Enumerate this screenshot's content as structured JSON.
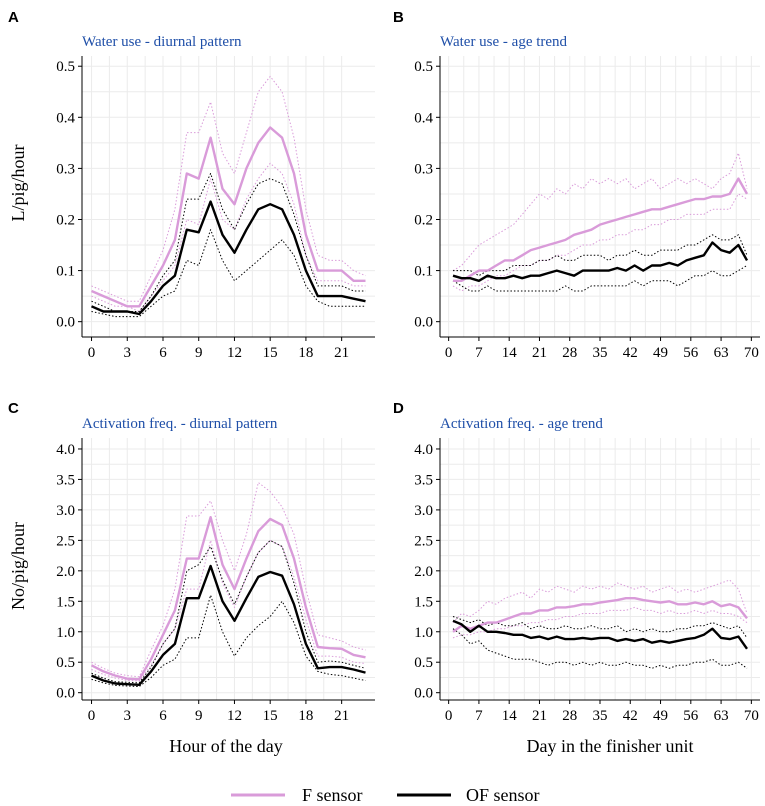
{
  "colors": {
    "f_sensor": "#d99bd9",
    "of_sensor": "#000000",
    "title": "#1f4fa8",
    "grid": "#ebebeb"
  },
  "legend": {
    "f_label": "F sensor",
    "of_label": "OF sensor"
  },
  "chart_data": [
    {
      "letter": "A",
      "type": "line",
      "title": "Water use - diurnal pattern",
      "xlabel": "",
      "ylabel": "L/pig/hour",
      "xlim": [
        -0.8,
        23.8
      ],
      "ylim": [
        -0.03,
        0.52
      ],
      "xticks": [
        0,
        3,
        6,
        9,
        12,
        15,
        18,
        21
      ],
      "yticks": [
        0.0,
        0.1,
        0.2,
        0.3,
        0.4,
        0.5
      ],
      "ytick_labels": [
        "0.0",
        "0.1",
        "0.2",
        "0.3",
        "0.4",
        "0.5"
      ],
      "x": [
        0,
        1,
        2,
        3,
        4,
        5,
        6,
        7,
        8,
        9,
        10,
        11,
        12,
        13,
        14,
        15,
        16,
        17,
        18,
        19,
        20,
        21,
        22,
        23
      ],
      "series": [
        {
          "name": "F sensor",
          "role": "mean",
          "values": [
            0.06,
            0.05,
            0.04,
            0.03,
            0.03,
            0.07,
            0.11,
            0.16,
            0.29,
            0.28,
            0.36,
            0.26,
            0.23,
            0.3,
            0.35,
            0.38,
            0.36,
            0.29,
            0.17,
            0.1,
            0.1,
            0.1,
            0.08,
            0.08
          ]
        },
        {
          "name": "F sensor",
          "role": "upper",
          "values": [
            0.07,
            0.06,
            0.05,
            0.04,
            0.04,
            0.09,
            0.14,
            0.22,
            0.37,
            0.37,
            0.43,
            0.33,
            0.29,
            0.37,
            0.45,
            0.48,
            0.45,
            0.36,
            0.22,
            0.13,
            0.12,
            0.12,
            0.1,
            0.09
          ]
        },
        {
          "name": "F sensor",
          "role": "lower",
          "values": [
            0.05,
            0.04,
            0.03,
            0.03,
            0.02,
            0.05,
            0.08,
            0.11,
            0.2,
            0.19,
            0.28,
            0.2,
            0.18,
            0.24,
            0.28,
            0.31,
            0.29,
            0.23,
            0.13,
            0.08,
            0.08,
            0.08,
            0.07,
            0.07
          ]
        },
        {
          "name": "OF sensor",
          "role": "mean",
          "values": [
            0.03,
            0.02,
            0.02,
            0.02,
            0.015,
            0.04,
            0.07,
            0.09,
            0.18,
            0.175,
            0.235,
            0.17,
            0.135,
            0.18,
            0.22,
            0.23,
            0.22,
            0.17,
            0.1,
            0.05,
            0.05,
            0.05,
            0.045,
            0.04
          ]
        },
        {
          "name": "OF sensor",
          "role": "upper",
          "values": [
            0.04,
            0.03,
            0.02,
            0.02,
            0.02,
            0.05,
            0.09,
            0.12,
            0.24,
            0.24,
            0.29,
            0.22,
            0.18,
            0.23,
            0.27,
            0.28,
            0.27,
            0.21,
            0.13,
            0.07,
            0.07,
            0.07,
            0.06,
            0.06
          ]
        },
        {
          "name": "OF sensor",
          "role": "lower",
          "values": [
            0.02,
            0.015,
            0.01,
            0.01,
            0.01,
            0.03,
            0.05,
            0.06,
            0.12,
            0.11,
            0.18,
            0.12,
            0.08,
            0.1,
            0.12,
            0.14,
            0.16,
            0.13,
            0.07,
            0.04,
            0.03,
            0.03,
            0.03,
            0.03
          ]
        }
      ]
    },
    {
      "letter": "B",
      "type": "line",
      "title": "Water use - age trend",
      "xlabel": "",
      "ylabel": "",
      "xlim": [
        -2,
        72
      ],
      "ylim": [
        -0.03,
        0.52
      ],
      "xticks": [
        0,
        7,
        14,
        21,
        28,
        35,
        42,
        49,
        56,
        63,
        70
      ],
      "yticks": [
        0.0,
        0.1,
        0.2,
        0.3,
        0.4,
        0.5
      ],
      "ytick_labels": [
        "0.0",
        "0.1",
        "0.2",
        "0.3",
        "0.4",
        "0.5"
      ],
      "x": [
        1,
        3,
        5,
        7,
        9,
        11,
        13,
        15,
        17,
        19,
        21,
        23,
        25,
        27,
        29,
        31,
        33,
        35,
        37,
        39,
        41,
        43,
        45,
        47,
        49,
        51,
        53,
        55,
        57,
        59,
        61,
        63,
        65,
        67,
        69
      ],
      "series": [
        {
          "name": "F sensor",
          "role": "mean",
          "values": [
            0.08,
            0.08,
            0.09,
            0.1,
            0.1,
            0.11,
            0.12,
            0.12,
            0.13,
            0.14,
            0.145,
            0.15,
            0.155,
            0.16,
            0.17,
            0.175,
            0.18,
            0.19,
            0.195,
            0.2,
            0.205,
            0.21,
            0.215,
            0.22,
            0.22,
            0.225,
            0.23,
            0.235,
            0.24,
            0.24,
            0.245,
            0.245,
            0.25,
            0.28,
            0.25
          ]
        },
        {
          "name": "F sensor",
          "role": "upper",
          "values": [
            0.1,
            0.11,
            0.13,
            0.15,
            0.16,
            0.17,
            0.18,
            0.19,
            0.21,
            0.23,
            0.25,
            0.24,
            0.26,
            0.25,
            0.27,
            0.26,
            0.28,
            0.27,
            0.28,
            0.27,
            0.28,
            0.26,
            0.27,
            0.28,
            0.26,
            0.27,
            0.28,
            0.27,
            0.28,
            0.27,
            0.26,
            0.28,
            0.29,
            0.33,
            0.26
          ]
        },
        {
          "name": "F sensor",
          "role": "lower",
          "values": [
            0.07,
            0.06,
            0.07,
            0.07,
            0.08,
            0.09,
            0.09,
            0.1,
            0.11,
            0.11,
            0.12,
            0.12,
            0.13,
            0.13,
            0.14,
            0.15,
            0.15,
            0.16,
            0.16,
            0.17,
            0.17,
            0.18,
            0.18,
            0.19,
            0.19,
            0.2,
            0.2,
            0.21,
            0.21,
            0.21,
            0.22,
            0.22,
            0.22,
            0.25,
            0.24
          ]
        },
        {
          "name": "OF sensor",
          "role": "mean",
          "values": [
            0.09,
            0.085,
            0.085,
            0.08,
            0.09,
            0.085,
            0.085,
            0.09,
            0.085,
            0.09,
            0.09,
            0.095,
            0.1,
            0.095,
            0.09,
            0.1,
            0.1,
            0.1,
            0.1,
            0.105,
            0.1,
            0.11,
            0.1,
            0.11,
            0.11,
            0.115,
            0.11,
            0.12,
            0.125,
            0.13,
            0.155,
            0.14,
            0.135,
            0.15,
            0.12
          ]
        },
        {
          "name": "OF sensor",
          "role": "upper",
          "values": [
            0.1,
            0.1,
            0.1,
            0.09,
            0.1,
            0.1,
            0.1,
            0.11,
            0.11,
            0.11,
            0.12,
            0.12,
            0.13,
            0.12,
            0.12,
            0.13,
            0.13,
            0.13,
            0.12,
            0.13,
            0.13,
            0.14,
            0.13,
            0.13,
            0.14,
            0.14,
            0.14,
            0.15,
            0.15,
            0.16,
            0.17,
            0.16,
            0.16,
            0.17,
            0.13
          ]
        },
        {
          "name": "OF sensor",
          "role": "lower",
          "values": [
            0.08,
            0.07,
            0.06,
            0.06,
            0.07,
            0.06,
            0.06,
            0.06,
            0.06,
            0.06,
            0.06,
            0.06,
            0.06,
            0.07,
            0.06,
            0.06,
            0.07,
            0.07,
            0.07,
            0.07,
            0.07,
            0.08,
            0.07,
            0.08,
            0.08,
            0.08,
            0.07,
            0.08,
            0.09,
            0.09,
            0.1,
            0.09,
            0.09,
            0.1,
            0.11
          ]
        }
      ]
    },
    {
      "letter": "C",
      "type": "line",
      "title": "Activation freq. - diurnal pattern",
      "xlabel": "Hour of the day",
      "ylabel": "No/pig/hour",
      "xlim": [
        -0.8,
        23.8
      ],
      "ylim": [
        -0.12,
        4.18
      ],
      "xticks": [
        0,
        3,
        6,
        9,
        12,
        15,
        18,
        21
      ],
      "yticks": [
        0.0,
        0.5,
        1.0,
        1.5,
        2.0,
        2.5,
        3.0,
        3.5,
        4.0
      ],
      "ytick_labels": [
        "0.0",
        "0.5",
        "1.0",
        "1.5",
        "2.0",
        "2.5",
        "3.0",
        "3.5",
        "4.0"
      ],
      "x": [
        0,
        1,
        2,
        3,
        4,
        5,
        6,
        7,
        8,
        9,
        10,
        11,
        12,
        13,
        14,
        15,
        16,
        17,
        18,
        19,
        20,
        21,
        22,
        23
      ],
      "series": [
        {
          "name": "F sensor",
          "role": "mean",
          "values": [
            0.45,
            0.35,
            0.28,
            0.23,
            0.22,
            0.55,
            0.95,
            1.35,
            2.2,
            2.2,
            2.88,
            2.1,
            1.7,
            2.2,
            2.65,
            2.85,
            2.75,
            2.2,
            1.4,
            0.75,
            0.73,
            0.72,
            0.62,
            0.58
          ]
        },
        {
          "name": "F sensor",
          "role": "upper",
          "values": [
            0.5,
            0.4,
            0.32,
            0.28,
            0.26,
            0.7,
            1.1,
            1.7,
            2.9,
            2.9,
            3.15,
            2.5,
            2.0,
            2.6,
            3.45,
            3.3,
            3.05,
            2.6,
            1.7,
            0.95,
            0.9,
            0.85,
            0.75,
            0.7
          ]
        },
        {
          "name": "F sensor",
          "role": "lower",
          "values": [
            0.38,
            0.3,
            0.24,
            0.2,
            0.19,
            0.45,
            0.8,
            1.05,
            1.7,
            1.7,
            2.5,
            1.8,
            1.4,
            1.9,
            2.3,
            2.5,
            2.4,
            1.9,
            1.2,
            0.6,
            0.6,
            0.58,
            0.5,
            0.48
          ]
        },
        {
          "name": "OF sensor",
          "role": "mean",
          "values": [
            0.28,
            0.2,
            0.15,
            0.14,
            0.13,
            0.35,
            0.62,
            0.8,
            1.55,
            1.55,
            2.08,
            1.5,
            1.18,
            1.55,
            1.9,
            1.98,
            1.92,
            1.45,
            0.8,
            0.4,
            0.42,
            0.42,
            0.38,
            0.33
          ]
        },
        {
          "name": "OF sensor",
          "role": "upper",
          "values": [
            0.32,
            0.24,
            0.18,
            0.17,
            0.16,
            0.42,
            0.8,
            1.05,
            2.0,
            2.1,
            2.4,
            1.85,
            1.45,
            1.9,
            2.3,
            2.5,
            2.4,
            1.8,
            1.0,
            0.5,
            0.52,
            0.5,
            0.45,
            0.4
          ]
        },
        {
          "name": "OF sensor",
          "role": "lower",
          "values": [
            0.22,
            0.16,
            0.12,
            0.11,
            0.1,
            0.25,
            0.45,
            0.55,
            0.9,
            0.9,
            1.6,
            1.0,
            0.6,
            0.9,
            1.1,
            1.25,
            1.5,
            1.15,
            0.6,
            0.35,
            0.3,
            0.28,
            0.24,
            0.2
          ]
        }
      ]
    },
    {
      "letter": "D",
      "type": "line",
      "title": "Activation freq. - age trend",
      "xlabel": "Day in the finisher unit",
      "ylabel": "",
      "xlim": [
        -2,
        72
      ],
      "ylim": [
        -0.12,
        4.18
      ],
      "xticks": [
        0,
        7,
        14,
        21,
        28,
        35,
        42,
        49,
        56,
        63,
        70
      ],
      "yticks": [
        0.0,
        0.5,
        1.0,
        1.5,
        2.0,
        2.5,
        3.0,
        3.5,
        4.0
      ],
      "ytick_labels": [
        "0.0",
        "0.5",
        "1.0",
        "1.5",
        "2.0",
        "2.5",
        "3.0",
        "3.5",
        "4.0"
      ],
      "x": [
        1,
        3,
        5,
        7,
        9,
        11,
        13,
        15,
        17,
        19,
        21,
        23,
        25,
        27,
        29,
        31,
        33,
        35,
        37,
        39,
        41,
        43,
        45,
        47,
        49,
        51,
        53,
        55,
        57,
        59,
        61,
        63,
        65,
        67,
        69
      ],
      "series": [
        {
          "name": "F sensor",
          "role": "mean",
          "values": [
            1.0,
            1.1,
            1.05,
            1.1,
            1.15,
            1.15,
            1.2,
            1.25,
            1.3,
            1.3,
            1.35,
            1.35,
            1.4,
            1.4,
            1.42,
            1.45,
            1.45,
            1.48,
            1.5,
            1.52,
            1.55,
            1.55,
            1.52,
            1.5,
            1.48,
            1.5,
            1.45,
            1.45,
            1.48,
            1.45,
            1.5,
            1.42,
            1.45,
            1.4,
            1.22
          ]
        },
        {
          "name": "F sensor",
          "role": "upper",
          "values": [
            1.15,
            1.3,
            1.25,
            1.35,
            1.5,
            1.45,
            1.55,
            1.6,
            1.65,
            1.55,
            1.7,
            1.65,
            1.75,
            1.7,
            1.65,
            1.75,
            1.7,
            1.75,
            1.7,
            1.8,
            1.75,
            1.7,
            1.75,
            1.65,
            1.7,
            1.75,
            1.65,
            1.7,
            1.65,
            1.7,
            1.75,
            1.8,
            1.85,
            1.7,
            1.3
          ]
        },
        {
          "name": "F sensor",
          "role": "lower",
          "values": [
            0.9,
            0.95,
            0.95,
            1.0,
            1.0,
            1.05,
            1.05,
            1.1,
            1.1,
            1.15,
            1.15,
            1.2,
            1.2,
            1.25,
            1.25,
            1.3,
            1.3,
            1.3,
            1.35,
            1.35,
            1.35,
            1.4,
            1.35,
            1.35,
            1.3,
            1.35,
            1.3,
            1.3,
            1.35,
            1.3,
            1.35,
            1.3,
            1.3,
            1.25,
            1.15
          ]
        },
        {
          "name": "OF sensor",
          "role": "mean",
          "values": [
            1.18,
            1.12,
            1.0,
            1.1,
            1.0,
            1.0,
            0.98,
            0.95,
            0.95,
            0.9,
            0.92,
            0.88,
            0.92,
            0.88,
            0.88,
            0.9,
            0.88,
            0.9,
            0.9,
            0.85,
            0.88,
            0.85,
            0.88,
            0.82,
            0.85,
            0.82,
            0.85,
            0.88,
            0.9,
            0.95,
            1.05,
            0.9,
            0.88,
            0.92,
            0.72
          ]
        },
        {
          "name": "OF sensor",
          "role": "upper",
          "values": [
            1.25,
            1.2,
            1.15,
            1.2,
            1.1,
            1.15,
            1.1,
            1.1,
            1.15,
            1.05,
            1.1,
            1.05,
            1.05,
            1.1,
            1.05,
            1.05,
            1.1,
            1.05,
            1.05,
            1.1,
            1.0,
            1.05,
            1.0,
            1.05,
            1.0,
            1.0,
            1.05,
            1.05,
            1.1,
            1.1,
            1.15,
            1.1,
            1.05,
            1.1,
            0.9
          ]
        },
        {
          "name": "OF sensor",
          "role": "lower",
          "values": [
            1.05,
            0.95,
            0.8,
            0.85,
            0.7,
            0.65,
            0.6,
            0.55,
            0.55,
            0.55,
            0.5,
            0.45,
            0.5,
            0.5,
            0.45,
            0.5,
            0.45,
            0.5,
            0.45,
            0.45,
            0.5,
            0.45,
            0.45,
            0.4,
            0.45,
            0.4,
            0.45,
            0.45,
            0.5,
            0.5,
            0.55,
            0.45,
            0.45,
            0.5,
            0.4
          ]
        }
      ]
    }
  ]
}
